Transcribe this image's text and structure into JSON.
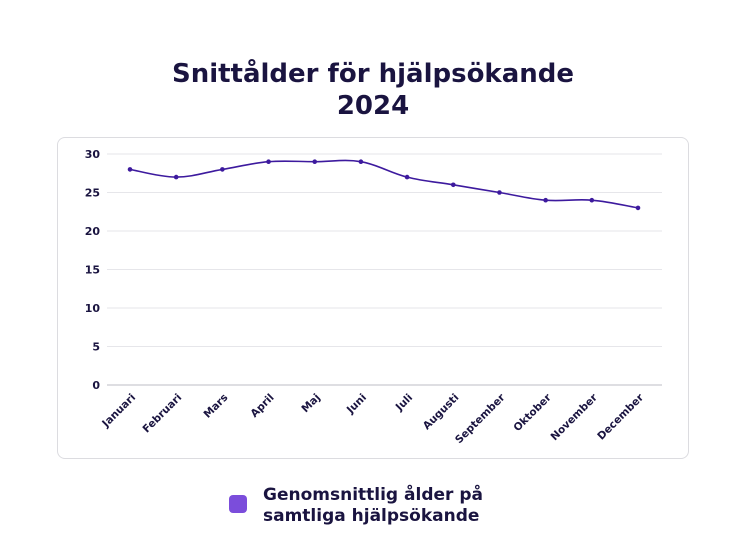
{
  "title_line1": "Snittålder för hjälpsökande",
  "title_line2": "2024",
  "colors": {
    "line": "#3d1a9e",
    "swatch": "#7b4ddb",
    "grid": "#e6e6ea"
  },
  "legend": {
    "label_line1": "Genomsnittlig ålder på",
    "label_line2": "samtliga hjälpsökande"
  },
  "chart_data": {
    "type": "line",
    "title": "Snittålder för hjälpsökande 2024",
    "categories": [
      "Januari",
      "Februari",
      "Mars",
      "April",
      "Maj",
      "Juni",
      "Juli",
      "Augusti",
      "September",
      "Oktober",
      "November",
      "December"
    ],
    "series": [
      {
        "name": "Genomsnittlig ålder på samtliga hjälpsökande",
        "values": [
          28,
          27,
          28,
          29,
          29,
          29,
          27,
          26,
          25,
          24,
          24,
          23
        ]
      }
    ],
    "yticks": [
      "0",
      "5",
      "10",
      "15",
      "20",
      "25",
      "30"
    ],
    "ylim": [
      0,
      30
    ],
    "grid": true,
    "legend_position": "bottom"
  }
}
